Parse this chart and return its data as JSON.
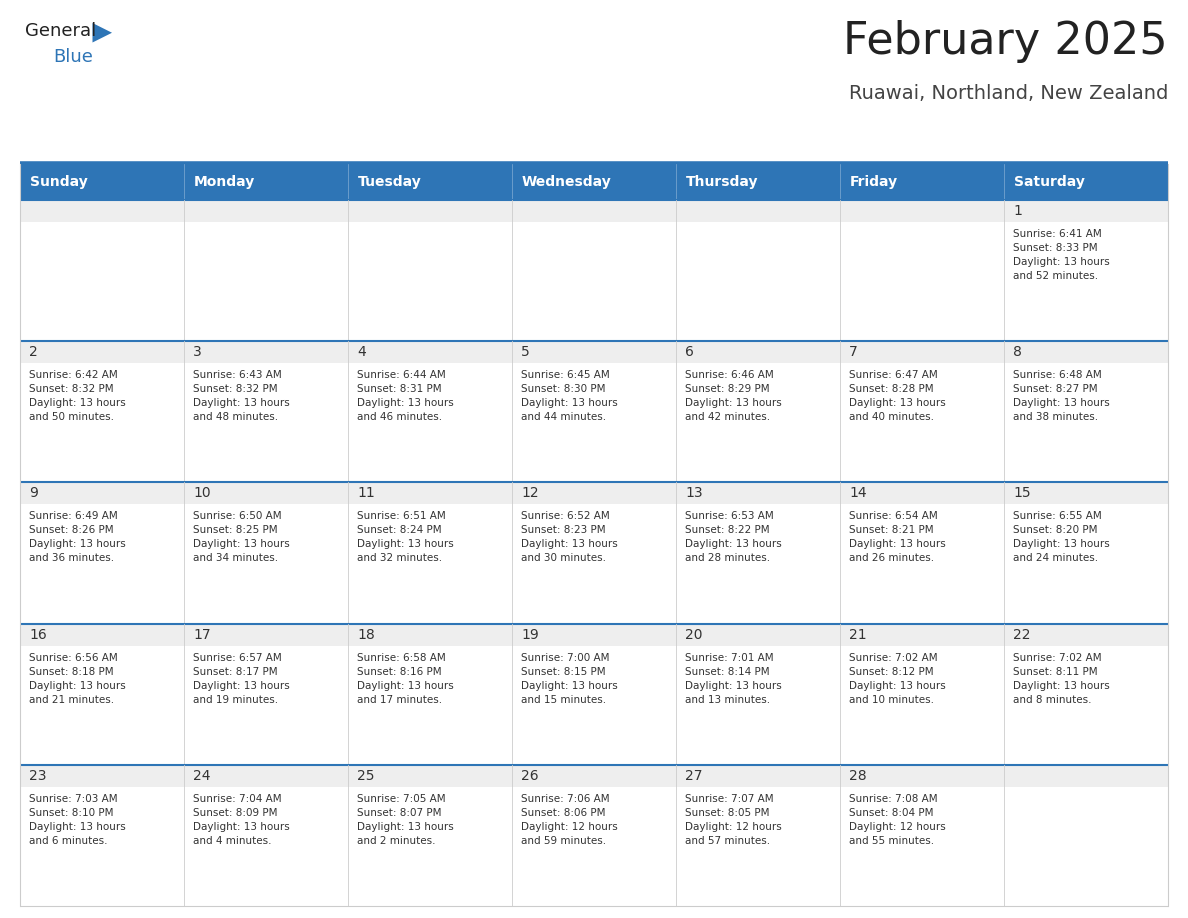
{
  "title": "February 2025",
  "subtitle": "Ruawai, Northland, New Zealand",
  "days_of_week": [
    "Sunday",
    "Monday",
    "Tuesday",
    "Wednesday",
    "Thursday",
    "Friday",
    "Saturday"
  ],
  "header_bg": "#2E75B6",
  "header_text": "#FFFFFF",
  "cell_bg_white": "#FFFFFF",
  "cell_bg_light": "#EEEEEE",
  "cell_border_blue": "#2E75B6",
  "cell_border_gray": "#CCCCCC",
  "day_number_color": "#333333",
  "info_text_color": "#333333",
  "title_color": "#222222",
  "subtitle_color": "#444444",
  "logo_general_color": "#222222",
  "logo_blue_color": "#2E75B6",
  "weeks": [
    [
      {
        "day": null,
        "info": ""
      },
      {
        "day": null,
        "info": ""
      },
      {
        "day": null,
        "info": ""
      },
      {
        "day": null,
        "info": ""
      },
      {
        "day": null,
        "info": ""
      },
      {
        "day": null,
        "info": ""
      },
      {
        "day": 1,
        "info": "Sunrise: 6:41 AM\nSunset: 8:33 PM\nDaylight: 13 hours\nand 52 minutes."
      }
    ],
    [
      {
        "day": 2,
        "info": "Sunrise: 6:42 AM\nSunset: 8:32 PM\nDaylight: 13 hours\nand 50 minutes."
      },
      {
        "day": 3,
        "info": "Sunrise: 6:43 AM\nSunset: 8:32 PM\nDaylight: 13 hours\nand 48 minutes."
      },
      {
        "day": 4,
        "info": "Sunrise: 6:44 AM\nSunset: 8:31 PM\nDaylight: 13 hours\nand 46 minutes."
      },
      {
        "day": 5,
        "info": "Sunrise: 6:45 AM\nSunset: 8:30 PM\nDaylight: 13 hours\nand 44 minutes."
      },
      {
        "day": 6,
        "info": "Sunrise: 6:46 AM\nSunset: 8:29 PM\nDaylight: 13 hours\nand 42 minutes."
      },
      {
        "day": 7,
        "info": "Sunrise: 6:47 AM\nSunset: 8:28 PM\nDaylight: 13 hours\nand 40 minutes."
      },
      {
        "day": 8,
        "info": "Sunrise: 6:48 AM\nSunset: 8:27 PM\nDaylight: 13 hours\nand 38 minutes."
      }
    ],
    [
      {
        "day": 9,
        "info": "Sunrise: 6:49 AM\nSunset: 8:26 PM\nDaylight: 13 hours\nand 36 minutes."
      },
      {
        "day": 10,
        "info": "Sunrise: 6:50 AM\nSunset: 8:25 PM\nDaylight: 13 hours\nand 34 minutes."
      },
      {
        "day": 11,
        "info": "Sunrise: 6:51 AM\nSunset: 8:24 PM\nDaylight: 13 hours\nand 32 minutes."
      },
      {
        "day": 12,
        "info": "Sunrise: 6:52 AM\nSunset: 8:23 PM\nDaylight: 13 hours\nand 30 minutes."
      },
      {
        "day": 13,
        "info": "Sunrise: 6:53 AM\nSunset: 8:22 PM\nDaylight: 13 hours\nand 28 minutes."
      },
      {
        "day": 14,
        "info": "Sunrise: 6:54 AM\nSunset: 8:21 PM\nDaylight: 13 hours\nand 26 minutes."
      },
      {
        "day": 15,
        "info": "Sunrise: 6:55 AM\nSunset: 8:20 PM\nDaylight: 13 hours\nand 24 minutes."
      }
    ],
    [
      {
        "day": 16,
        "info": "Sunrise: 6:56 AM\nSunset: 8:18 PM\nDaylight: 13 hours\nand 21 minutes."
      },
      {
        "day": 17,
        "info": "Sunrise: 6:57 AM\nSunset: 8:17 PM\nDaylight: 13 hours\nand 19 minutes."
      },
      {
        "day": 18,
        "info": "Sunrise: 6:58 AM\nSunset: 8:16 PM\nDaylight: 13 hours\nand 17 minutes."
      },
      {
        "day": 19,
        "info": "Sunrise: 7:00 AM\nSunset: 8:15 PM\nDaylight: 13 hours\nand 15 minutes."
      },
      {
        "day": 20,
        "info": "Sunrise: 7:01 AM\nSunset: 8:14 PM\nDaylight: 13 hours\nand 13 minutes."
      },
      {
        "day": 21,
        "info": "Sunrise: 7:02 AM\nSunset: 8:12 PM\nDaylight: 13 hours\nand 10 minutes."
      },
      {
        "day": 22,
        "info": "Sunrise: 7:02 AM\nSunset: 8:11 PM\nDaylight: 13 hours\nand 8 minutes."
      }
    ],
    [
      {
        "day": 23,
        "info": "Sunrise: 7:03 AM\nSunset: 8:10 PM\nDaylight: 13 hours\nand 6 minutes."
      },
      {
        "day": 24,
        "info": "Sunrise: 7:04 AM\nSunset: 8:09 PM\nDaylight: 13 hours\nand 4 minutes."
      },
      {
        "day": 25,
        "info": "Sunrise: 7:05 AM\nSunset: 8:07 PM\nDaylight: 13 hours\nand 2 minutes."
      },
      {
        "day": 26,
        "info": "Sunrise: 7:06 AM\nSunset: 8:06 PM\nDaylight: 12 hours\nand 59 minutes."
      },
      {
        "day": 27,
        "info": "Sunrise: 7:07 AM\nSunset: 8:05 PM\nDaylight: 12 hours\nand 57 minutes."
      },
      {
        "day": 28,
        "info": "Sunrise: 7:08 AM\nSunset: 8:04 PM\nDaylight: 12 hours\nand 55 minutes."
      },
      {
        "day": null,
        "info": ""
      }
    ]
  ]
}
